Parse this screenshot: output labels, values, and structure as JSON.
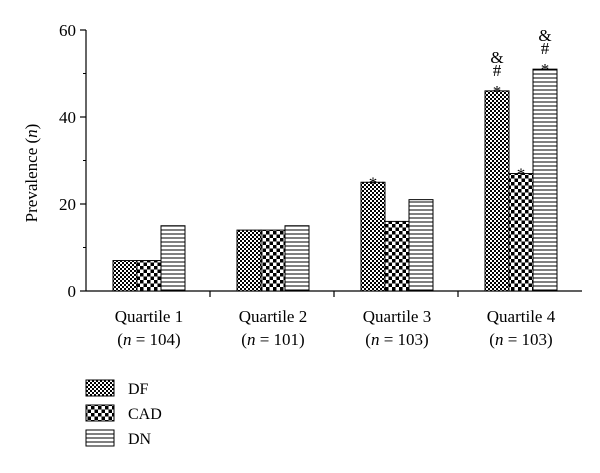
{
  "chart_data": {
    "type": "bar",
    "ylabel_text": "Prevalence (",
    "ylabel_italic": "n",
    "ylabel_close": ")",
    "ylim": [
      0,
      60
    ],
    "yticks": [
      0,
      20,
      40,
      60
    ],
    "categories": [
      {
        "name": "Quartile 1",
        "n_prefix": "(",
        "n_var": "n",
        "n_rest": " = 104)"
      },
      {
        "name": "Quartile 2",
        "n_prefix": "(",
        "n_var": "n",
        "n_rest": " = 101)"
      },
      {
        "name": "Quartile 3",
        "n_prefix": "(",
        "n_var": "n",
        "n_rest": " = 103)"
      },
      {
        "name": "Quartile 4",
        "n_prefix": "(",
        "n_var": "n",
        "n_rest": " = 103)"
      }
    ],
    "series": [
      {
        "name": "DF",
        "pattern": "checker-fine",
        "values": [
          7,
          14,
          25,
          46
        ],
        "annotations": [
          [],
          [],
          [
            "*"
          ],
          [
            "&",
            "#",
            "*"
          ]
        ]
      },
      {
        "name": "CAD",
        "pattern": "checker-coarse",
        "values": [
          7,
          14,
          16,
          27
        ],
        "annotations": [
          [],
          [],
          [],
          [
            "*"
          ]
        ]
      },
      {
        "name": "DN",
        "pattern": "hlines",
        "values": [
          15,
          15,
          21,
          51
        ],
        "annotations": [
          [],
          [],
          [],
          [
            "&",
            "#",
            "*"
          ]
        ]
      }
    ],
    "legend_position": "bottom-left",
    "grid": false
  }
}
